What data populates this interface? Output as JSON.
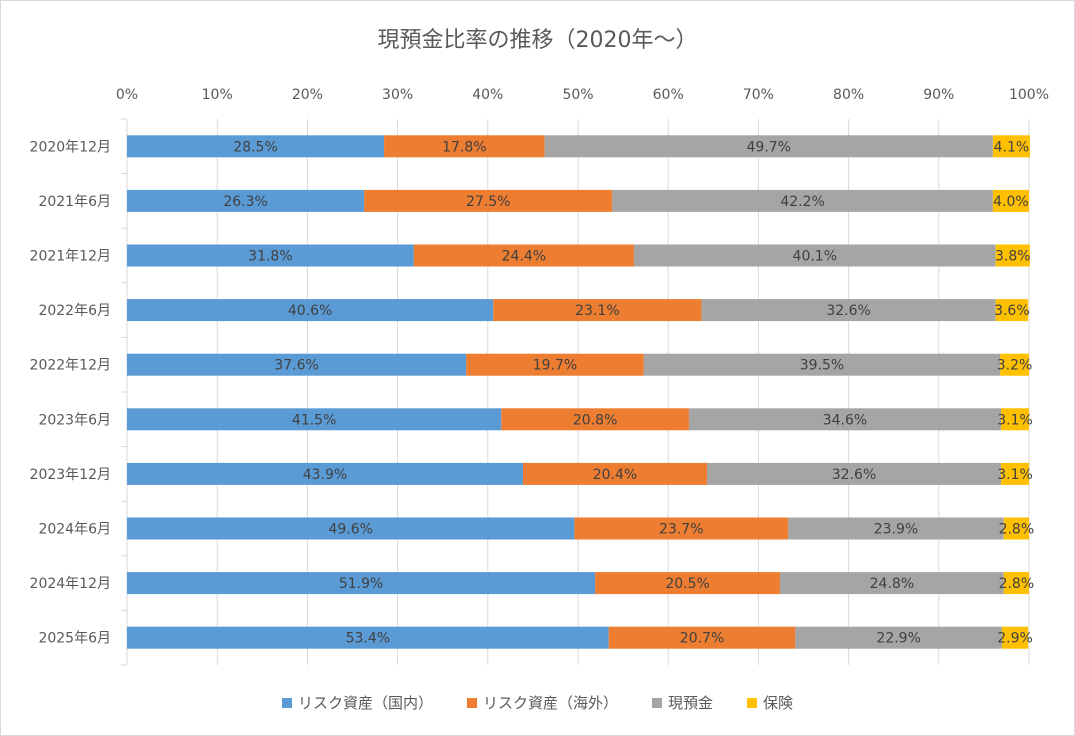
{
  "chart_data": {
    "type": "bar",
    "orientation": "horizontal",
    "stacked": "percent",
    "title": "現預金比率の推移（2020年～）",
    "categories": [
      "2020年12月",
      "2021年6月",
      "2021年12月",
      "2022年6月",
      "2022年12月",
      "2023年6月",
      "2023年12月",
      "2024年6月",
      "2024年12月",
      "2025年6月"
    ],
    "series": [
      {
        "name": "リスク資産（国内）",
        "color": "#5b9bd5",
        "values": [
          28.5,
          26.3,
          31.8,
          40.6,
          37.6,
          41.5,
          43.9,
          49.6,
          51.9,
          53.4
        ],
        "labels": [
          "28.5%",
          "26.3%",
          "31.8%",
          "40.6%",
          "37.6%",
          "41.5%",
          "43.9%",
          "49.6%",
          "51.9%",
          "53.4%"
        ]
      },
      {
        "name": "リスク資産（海外）",
        "color": "#ed7d31",
        "values": [
          17.8,
          27.5,
          24.4,
          23.1,
          19.7,
          20.8,
          20.4,
          23.7,
          20.5,
          20.7
        ],
        "labels": [
          "17.8%",
          "27.5%",
          "24.4%",
          "23.1%",
          "19.7%",
          "20.8%",
          "20.4%",
          "23.7%",
          "20.5%",
          "20.7%"
        ]
      },
      {
        "name": "現預金",
        "color": "#a5a5a5",
        "values": [
          49.7,
          42.2,
          40.1,
          32.6,
          39.5,
          34.6,
          32.6,
          23.9,
          24.8,
          22.9
        ],
        "labels": [
          "49.7%",
          "42.2%",
          "40.1%",
          "32.6%",
          "39.5%",
          "34.6%",
          "32.6%",
          "23.9%",
          "24.8%",
          "22.9%"
        ]
      },
      {
        "name": "保険",
        "color": "#ffc000",
        "values": [
          4.1,
          4.0,
          3.8,
          3.6,
          3.2,
          3.1,
          3.1,
          2.8,
          2.8,
          2.9
        ],
        "labels": [
          "4.1%",
          "4.0%",
          "3.8%",
          "3.6%",
          "3.2%",
          "3.1%",
          "3.1%",
          "2.8%",
          "2.8%",
          "2.9%"
        ]
      }
    ],
    "x_ticks": [
      "0%",
      "10%",
      "20%",
      "30%",
      "40%",
      "50%",
      "60%",
      "70%",
      "80%",
      "90%",
      "100%"
    ],
    "xlim": [
      0,
      100
    ],
    "x_axis_position": "top",
    "grid": true,
    "legend_position": "bottom"
  }
}
